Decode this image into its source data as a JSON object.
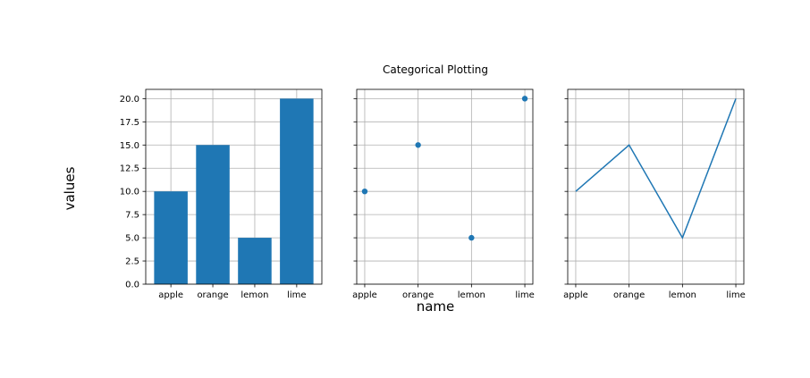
{
  "figure": {
    "title": "Categorical Plotting",
    "xlabel": "name",
    "ylabel": "values"
  },
  "chart_data": [
    {
      "type": "bar",
      "categories": [
        "apple",
        "orange",
        "lemon",
        "lime"
      ],
      "values": [
        10,
        15,
        5,
        20
      ],
      "ylim": [
        0,
        21
      ],
      "yticks": [
        "0.0",
        "2.5",
        "5.0",
        "7.5",
        "10.0",
        "12.5",
        "15.0",
        "17.5",
        "20.0"
      ],
      "grid": true,
      "color": "#1f77b4"
    },
    {
      "type": "scatter",
      "categories": [
        "apple",
        "orange",
        "lemon",
        "lime"
      ],
      "values": [
        10,
        15,
        5,
        20
      ],
      "ylim": [
        0,
        21
      ],
      "grid": true,
      "color": "#1f77b4"
    },
    {
      "type": "line",
      "categories": [
        "apple",
        "orange",
        "lemon",
        "lime"
      ],
      "values": [
        10,
        15,
        5,
        20
      ],
      "ylim": [
        0,
        21
      ],
      "grid": true,
      "color": "#1f77b4"
    }
  ]
}
